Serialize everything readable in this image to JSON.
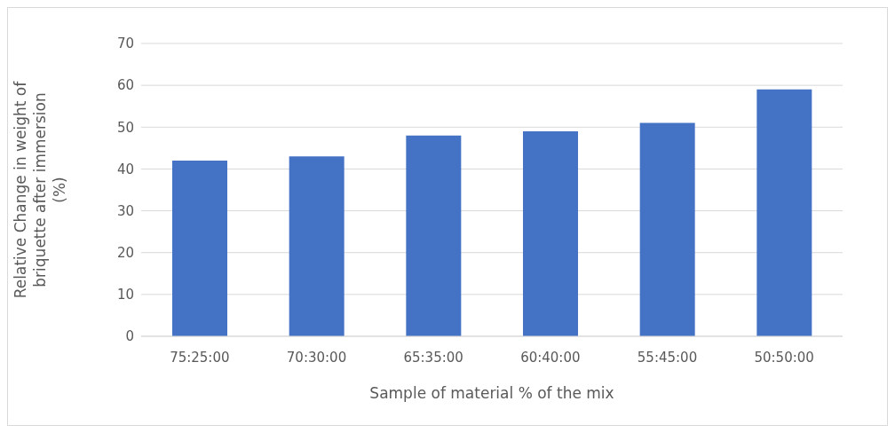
{
  "chart_data": {
    "type": "bar",
    "xlabel": "Sample of material % of the mix",
    "ylabel": "Relative Change in weight of briquette after immersion (%)",
    "categories": [
      "75:25:00",
      "70:30:00",
      "65:35:00",
      "60:40:00",
      "55:45:00",
      "50:50:00"
    ],
    "values": [
      42,
      43,
      48,
      49,
      51,
      59
    ],
    "color": "#4472c4",
    "ylim": [
      0,
      70
    ],
    "yticks": [
      0,
      10,
      20,
      30,
      40,
      50,
      60,
      70
    ],
    "grid": "y"
  }
}
